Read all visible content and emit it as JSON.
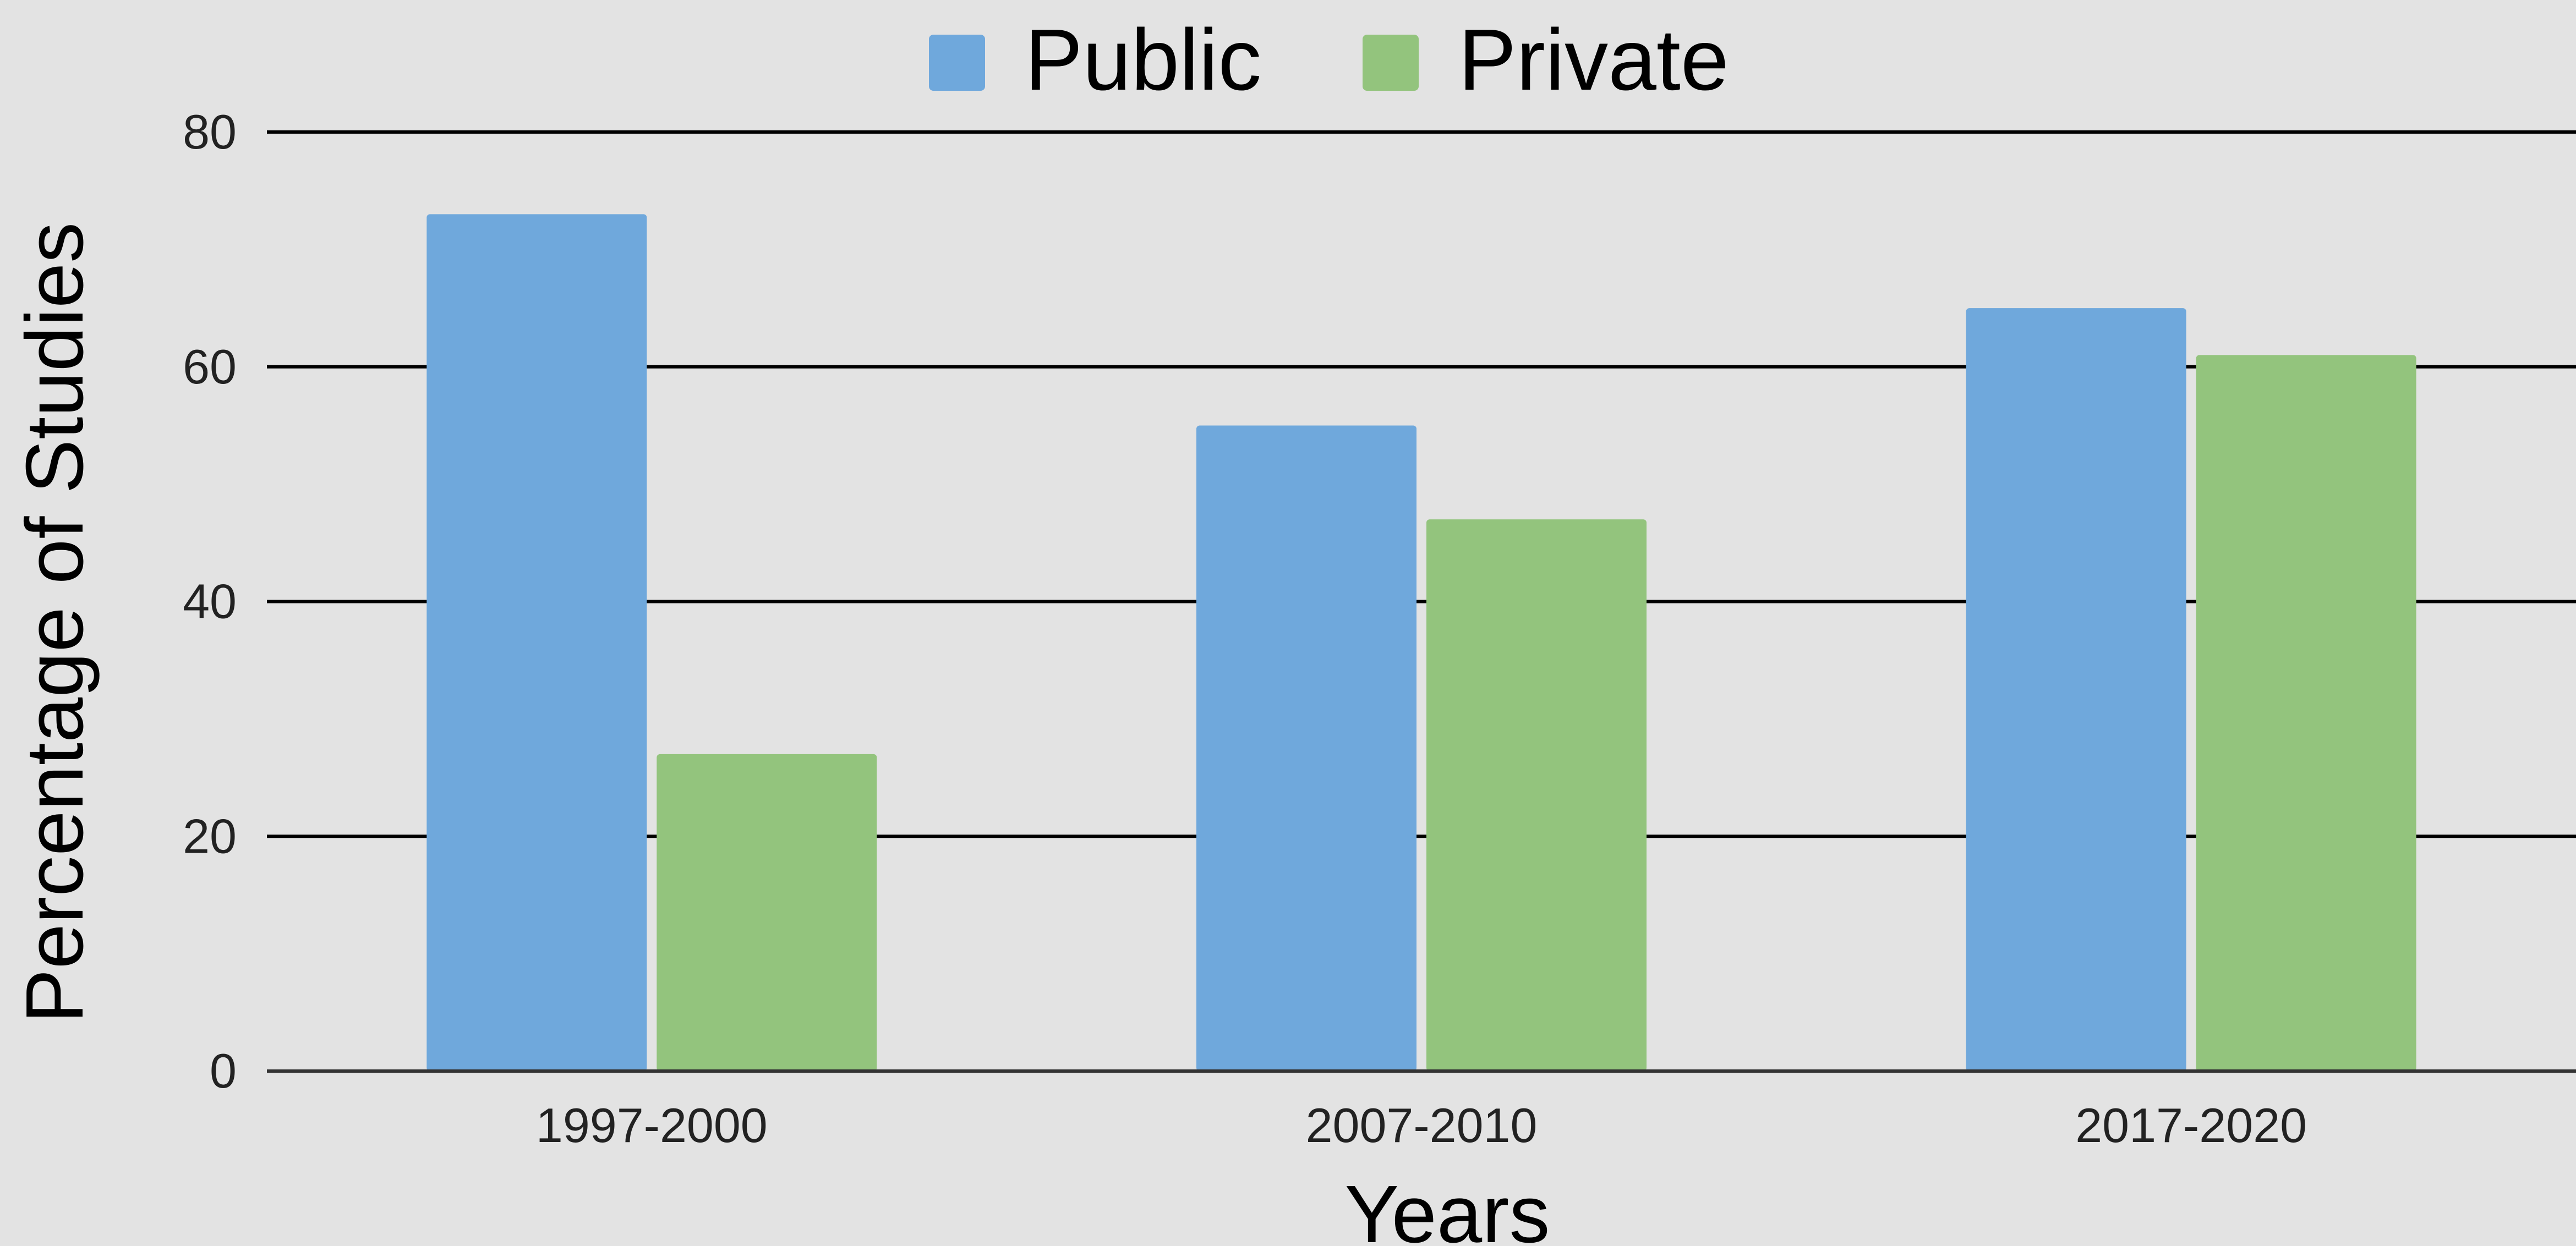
{
  "chart_data": {
    "type": "bar",
    "categories": [
      "1997-2000",
      "2007-2010",
      "2017-2020"
    ],
    "series": [
      {
        "name": "Public",
        "values": [
          73,
          55,
          65
        ],
        "color": "#6fa8dc"
      },
      {
        "name": "Private",
        "values": [
          27,
          47,
          61
        ],
        "color": "#93c47d"
      }
    ],
    "title": "",
    "xlabel": "Years",
    "ylabel": "Percentage of Studies",
    "ylim": [
      0,
      80
    ],
    "yticks": [
      0,
      20,
      40,
      60,
      80
    ],
    "grid": true,
    "legend_position": "top-center",
    "background": "#e3e3e3"
  }
}
